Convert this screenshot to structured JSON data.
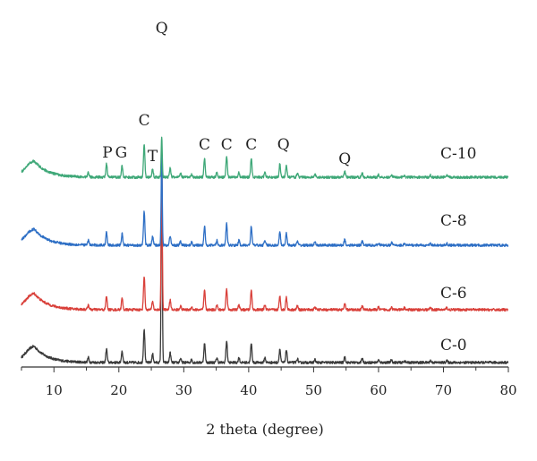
{
  "chart_data": {
    "type": "line",
    "title": "",
    "xlabel": "2 theta (degree)",
    "ylabel": "",
    "xlim": [
      5,
      80
    ],
    "x_ticks": [
      10,
      20,
      30,
      40,
      50,
      60,
      70,
      80
    ],
    "grid": false,
    "series": [
      {
        "name": "C-0",
        "color": "#3a3a3a"
      },
      {
        "name": "C-6",
        "color": "#d9403a"
      },
      {
        "name": "C-8",
        "color": "#2e6fc5"
      },
      {
        "name": "C-10",
        "color": "#3fa878"
      }
    ],
    "peaks": [
      {
        "x": 15.3,
        "h": 0.1
      },
      {
        "x": 18.1,
        "h": 0.28,
        "label": "P"
      },
      {
        "x": 20.5,
        "h": 0.24,
        "label": "G"
      },
      {
        "x": 23.9,
        "h": 0.7,
        "label": "C"
      },
      {
        "x": 25.2,
        "h": 0.18,
        "label": "T"
      },
      {
        "x": 26.6,
        "h": 3.0,
        "label": "Q"
      },
      {
        "x": 27.9,
        "h": 0.2
      },
      {
        "x": 29.5,
        "h": 0.08
      },
      {
        "x": 31.2,
        "h": 0.06
      },
      {
        "x": 33.2,
        "h": 0.4,
        "label": "C"
      },
      {
        "x": 35.1,
        "h": 0.1
      },
      {
        "x": 36.6,
        "h": 0.45,
        "label": "C"
      },
      {
        "x": 38.5,
        "h": 0.1
      },
      {
        "x": 40.4,
        "h": 0.4,
        "label": "C"
      },
      {
        "x": 42.5,
        "h": 0.1
      },
      {
        "x": 44.8,
        "h": 0.28,
        "label": "Q"
      },
      {
        "x": 45.8,
        "h": 0.26
      },
      {
        "x": 47.5,
        "h": 0.08
      },
      {
        "x": 50.2,
        "h": 0.06
      },
      {
        "x": 54.8,
        "h": 0.12,
        "label": "Q"
      },
      {
        "x": 57.5,
        "h": 0.08
      },
      {
        "x": 60.0,
        "h": 0.05
      },
      {
        "x": 62.0,
        "h": 0.06
      },
      {
        "x": 64.0,
        "h": 0.04
      },
      {
        "x": 68.0,
        "h": 0.04
      },
      {
        "x": 70.5,
        "h": 0.04
      }
    ]
  }
}
